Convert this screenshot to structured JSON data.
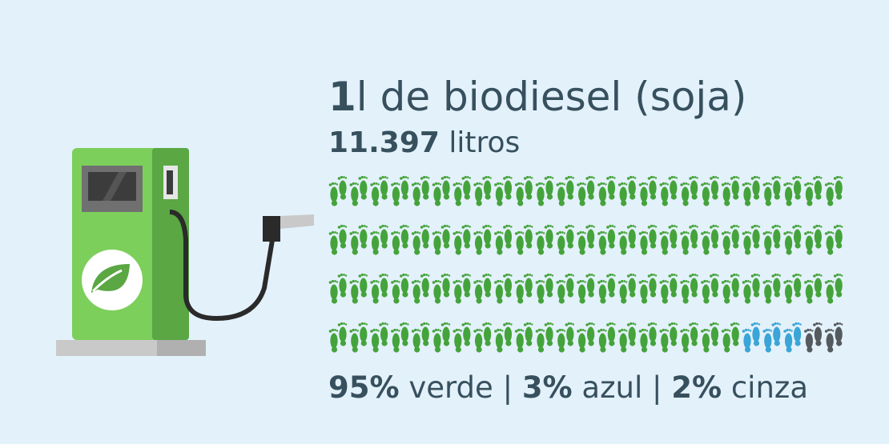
{
  "chart_data": {
    "type": "waffle",
    "volume": {
      "value": 1,
      "label": "1"
    },
    "volume_text": "l de biodiesel (soja)",
    "footprint": {
      "value": 11397,
      "label": "11.397"
    },
    "footprint_text": "litros",
    "separator": "|",
    "columns": 25,
    "series": [
      {
        "name": "verde",
        "color": "#45a33b",
        "value": 95,
        "value_label": "95%"
      },
      {
        "name": "azul",
        "color": "#3aa5d6",
        "value": 3,
        "value_label": "3%"
      },
      {
        "name": "cinza",
        "color": "#555a5e",
        "value": 2,
        "value_label": "2%"
      }
    ]
  }
}
